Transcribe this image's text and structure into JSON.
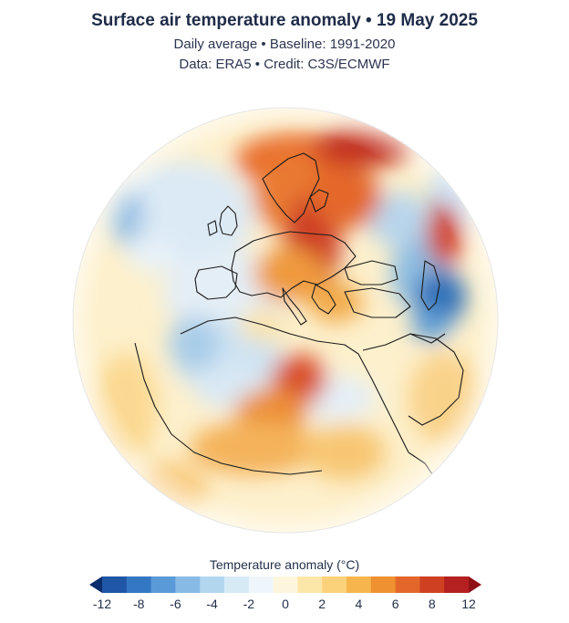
{
  "header": {
    "title": "Surface air temperature anomaly • 19 May 2025",
    "subtitle_1": "Daily average • Baseline: 1991-2020",
    "subtitle_2": "Data: ERA5 • Credit: C3S/ECMWF"
  },
  "map": {
    "projection": "orthographic",
    "region": "Europe, North Africa, Middle East",
    "colors": {
      "ocean_neutral": "#fbf3d8",
      "coastline": "#1a1a1a"
    }
  },
  "legend": {
    "title": "Temperature anomaly (°C)",
    "ticks": [
      "-12",
      "-8",
      "-6",
      "-4",
      "-2",
      "0",
      "2",
      "4",
      "6",
      "8",
      "12"
    ],
    "colors": [
      "#0b2d6c",
      "#1f56a6",
      "#3478c4",
      "#5a9ad8",
      "#87bbe6",
      "#b3d6ef",
      "#d6eaf6",
      "#eef6fb",
      "#fdf6dc",
      "#fde7a8",
      "#fbd27a",
      "#f7b54d",
      "#ef9131",
      "#e3672a",
      "#cf4023",
      "#b52020",
      "#8f1117"
    ]
  }
}
